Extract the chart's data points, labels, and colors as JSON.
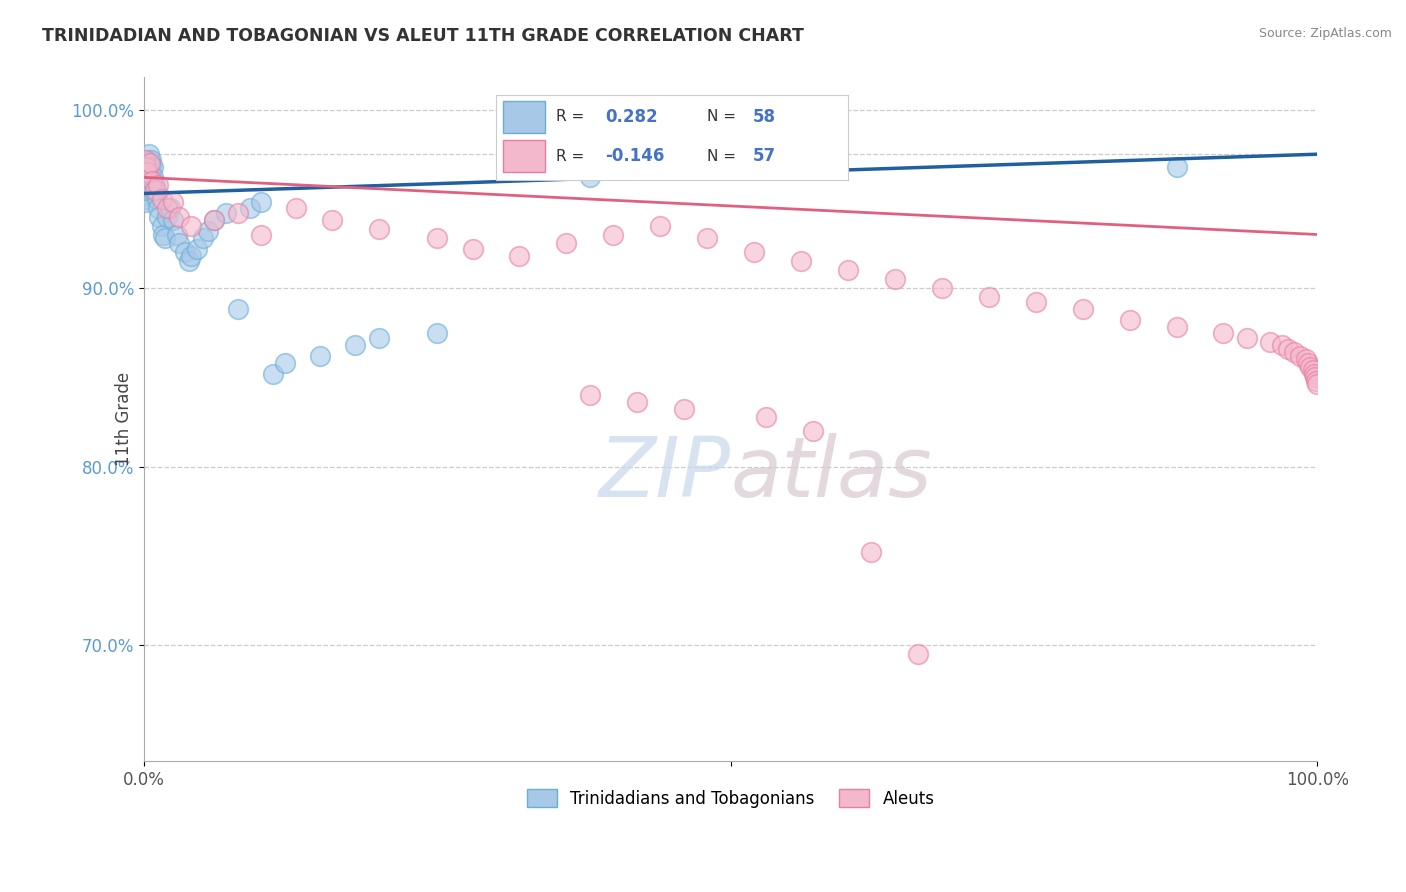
{
  "title": "TRINIDADIAN AND TOBAGONIAN VS ALEUT 11TH GRADE CORRELATION CHART",
  "source_text": "Source: ZipAtlas.com",
  "ylabel": "11th Grade",
  "legend_blue_r": "0.282",
  "legend_blue_n": "58",
  "legend_pink_r": "-0.146",
  "legend_pink_n": "57",
  "blue_color": "#a8c8e8",
  "blue_edge": "#6aaed6",
  "pink_color": "#f4b8cc",
  "pink_edge": "#e87fa0",
  "trend_blue": "#2060a0",
  "trend_pink": "#e06080",
  "ytick_values": [
    0.7,
    0.8,
    0.9,
    1.0
  ],
  "xlim": [
    0.0,
    1.0
  ],
  "ylim": [
    0.635,
    1.018
  ],
  "background_color": "#ffffff",
  "blue_points_x": [
    0.001,
    0.001,
    0.001,
    0.001,
    0.001,
    0.001,
    0.002,
    0.002,
    0.002,
    0.002,
    0.002,
    0.003,
    0.003,
    0.003,
    0.003,
    0.004,
    0.004,
    0.004,
    0.005,
    0.005,
    0.006,
    0.006,
    0.007,
    0.007,
    0.008,
    0.008,
    0.009,
    0.01,
    0.011,
    0.012,
    0.013,
    0.015,
    0.016,
    0.018,
    0.02,
    0.022,
    0.025,
    0.028,
    0.03,
    0.035,
    0.038,
    0.04,
    0.045,
    0.05,
    0.055,
    0.06,
    0.07,
    0.08,
    0.09,
    0.1,
    0.11,
    0.12,
    0.15,
    0.18,
    0.2,
    0.25,
    0.38,
    0.88
  ],
  "blue_points_y": [
    0.96,
    0.958,
    0.955,
    0.952,
    0.95,
    0.948,
    0.965,
    0.963,
    0.961,
    0.958,
    0.955,
    0.972,
    0.968,
    0.965,
    0.96,
    0.975,
    0.97,
    0.965,
    0.97,
    0.965,
    0.972,
    0.968,
    0.96,
    0.955,
    0.968,
    0.962,
    0.958,
    0.955,
    0.95,
    0.945,
    0.94,
    0.935,
    0.93,
    0.928,
    0.94,
    0.945,
    0.938,
    0.93,
    0.925,
    0.92,
    0.915,
    0.918,
    0.922,
    0.928,
    0.932,
    0.938,
    0.942,
    0.888,
    0.945,
    0.948,
    0.852,
    0.858,
    0.862,
    0.868,
    0.872,
    0.875,
    0.962,
    0.968
  ],
  "pink_points_x": [
    0.001,
    0.002,
    0.003,
    0.005,
    0.007,
    0.009,
    0.012,
    0.015,
    0.02,
    0.025,
    0.03,
    0.04,
    0.06,
    0.08,
    0.1,
    0.13,
    0.16,
    0.2,
    0.25,
    0.28,
    0.32,
    0.36,
    0.4,
    0.44,
    0.48,
    0.52,
    0.56,
    0.6,
    0.64,
    0.68,
    0.72,
    0.76,
    0.8,
    0.84,
    0.88,
    0.92,
    0.94,
    0.96,
    0.97,
    0.975,
    0.98,
    0.985,
    0.99,
    0.992,
    0.994,
    0.996,
    0.997,
    0.998,
    0.999,
    1.0,
    0.38,
    0.42,
    0.46,
    0.53,
    0.57,
    0.62,
    0.66
  ],
  "pink_points_y": [
    0.972,
    0.968,
    0.965,
    0.97,
    0.96,
    0.955,
    0.958,
    0.95,
    0.945,
    0.948,
    0.94,
    0.935,
    0.938,
    0.942,
    0.93,
    0.945,
    0.938,
    0.933,
    0.928,
    0.922,
    0.918,
    0.925,
    0.93,
    0.935,
    0.928,
    0.92,
    0.915,
    0.91,
    0.905,
    0.9,
    0.895,
    0.892,
    0.888,
    0.882,
    0.878,
    0.875,
    0.872,
    0.87,
    0.868,
    0.866,
    0.864,
    0.862,
    0.86,
    0.858,
    0.856,
    0.854,
    0.852,
    0.85,
    0.848,
    0.846,
    0.84,
    0.836,
    0.832,
    0.828,
    0.82,
    0.752,
    0.695
  ]
}
